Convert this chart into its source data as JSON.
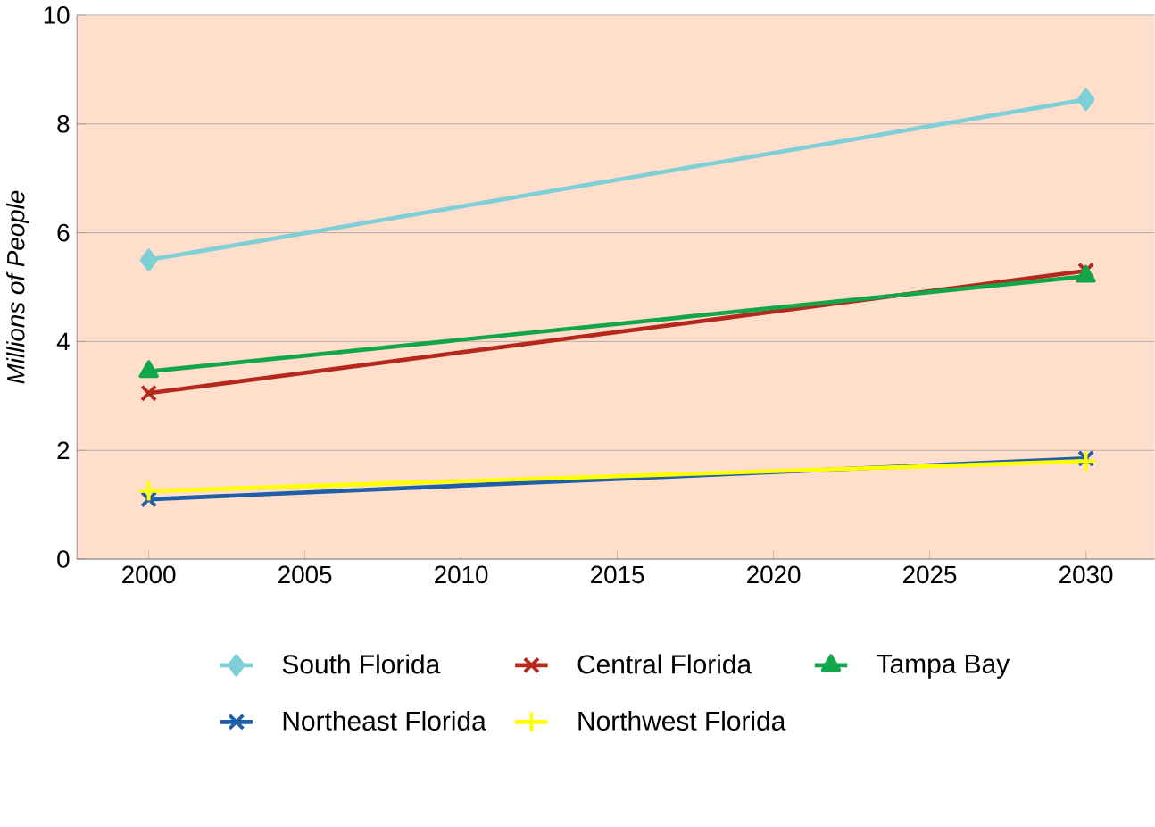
{
  "chart_data": {
    "type": "line",
    "ylabel": "*Millions of People*",
    "x": [
      2000,
      2030
    ],
    "xlim": [
      1997.7,
      2032.2
    ],
    "xticks": [
      2000,
      2005,
      2010,
      2015,
      2020,
      2025,
      2030
    ],
    "ylim": [
      0,
      10
    ],
    "yticks": [
      0,
      2,
      4,
      6,
      8,
      10
    ],
    "grid": "y",
    "legend": "bottom",
    "series": [
      {
        "name": "South Florida",
        "color": "#7ecfd6",
        "marker": "diamond",
        "values": [
          5.5,
          8.45
        ]
      },
      {
        "name": "Central Florida",
        "color": "#b5281c",
        "marker": "cross",
        "values": [
          3.05,
          5.3
        ]
      },
      {
        "name": "Tampa Bay",
        "color": "#13a54a",
        "marker": "triangle",
        "values": [
          3.45,
          5.2
        ]
      },
      {
        "name": "Northeast Florida",
        "color": "#1f5fa8",
        "marker": "cross",
        "values": [
          1.1,
          1.85
        ]
      },
      {
        "name": "Northwest Florida",
        "color": "#ffff00",
        "marker": "plus",
        "values": [
          1.25,
          1.8
        ]
      }
    ]
  }
}
